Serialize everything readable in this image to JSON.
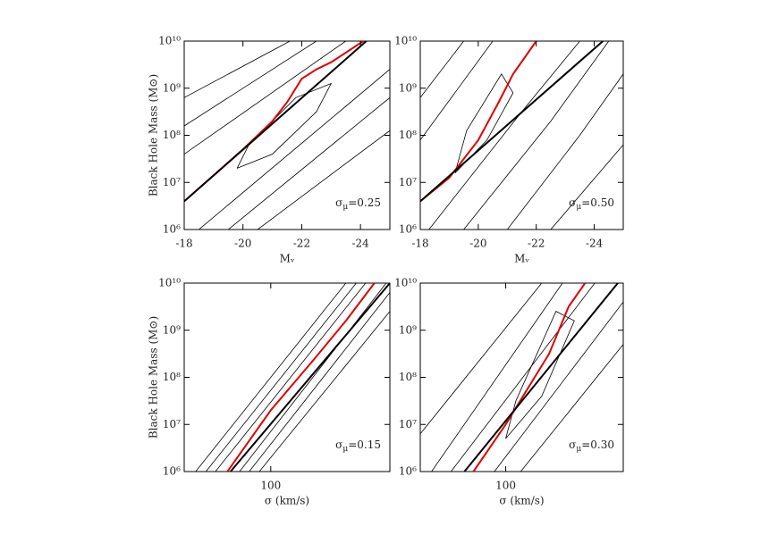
{
  "chart_data": [
    {
      "type": "line",
      "ylabel": "Black Hole Mass (M⊙)",
      "xlabel": "Mᵥ",
      "annotation": [
        "σ",
        "μ",
        "=0.25"
      ],
      "xlim": [
        -18,
        -25
      ],
      "xticks": [
        -18,
        -20,
        -22,
        -24
      ],
      "ylim": [
        6,
        10
      ],
      "yticks": [
        {
          "value": 6,
          "label": "10⁶"
        },
        {
          "value": 7,
          "label": "10⁷"
        },
        {
          "value": 8,
          "label": "10⁸"
        },
        {
          "value": 9,
          "label": "10⁹"
        },
        {
          "value": 10,
          "label": "10¹⁰"
        }
      ],
      "series": [
        {
          "color": "#000000",
          "x": [
            -18,
            -23.5
          ],
          "values": [
            7.6,
            10
          ]
        },
        {
          "color": "#000000",
          "x": [
            -18,
            -22.5
          ],
          "values": [
            8.2,
            10
          ]
        },
        {
          "color": "#000000",
          "x": [
            -18,
            -21.6
          ],
          "values": [
            8.8,
            10
          ]
        },
        {
          "color": "#000000",
          "x": [
            -18.5,
            -25
          ],
          "values": [
            6,
            9.4
          ]
        },
        {
          "color": "#000000",
          "x": [
            -19.5,
            -25
          ],
          "values": [
            6,
            8.8
          ]
        },
        {
          "color": "#000000",
          "x": [
            -20.5,
            -25
          ],
          "values": [
            6,
            8.1
          ]
        },
        {
          "color": "#000000",
          "x": [
            -19.8,
            -21,
            -22.5,
            -23,
            -21.8,
            -20.2,
            -19.8
          ],
          "values": [
            7.3,
            7.6,
            8.5,
            9.1,
            8.8,
            7.8,
            7.3
          ]
        },
        {
          "color": "#e00000",
          "x": [
            -18,
            -20,
            -21,
            -21.5,
            -22,
            -22.5,
            -23,
            -24.1
          ],
          "values": [
            6.6,
            7.7,
            8.3,
            8.7,
            9.2,
            9.4,
            9.55,
            10
          ]
        },
        {
          "color": "#000000",
          "x": [
            -18,
            -24.2
          ],
          "values": [
            6.6,
            10
          ]
        }
      ]
    },
    {
      "type": "line",
      "xlabel": "Mᵥ",
      "annotation": [
        "σ",
        "μ",
        "=0.50"
      ],
      "xlim": [
        -18,
        -25
      ],
      "xticks": [
        -18,
        -20,
        -22,
        -24
      ],
      "ylim": [
        6,
        10
      ],
      "yticks": [
        {
          "value": 6,
          "label": "10⁶"
        },
        {
          "value": 7,
          "label": "10⁷"
        },
        {
          "value": 8,
          "label": "10⁸"
        },
        {
          "value": 9,
          "label": "10⁹"
        },
        {
          "value": 10,
          "label": "10¹⁰"
        }
      ],
      "series": [
        {
          "color": "#000000",
          "x": [
            -18,
            -20.5
          ],
          "values": [
            7.9,
            10
          ]
        },
        {
          "color": "#000000",
          "x": [
            -18,
            -19.5
          ],
          "values": [
            8.8,
            10
          ]
        },
        {
          "color": "#000000",
          "x": [
            -18.3,
            -21.5,
            -23.5
          ],
          "values": [
            6,
            8.5,
            10
          ]
        },
        {
          "color": "#000000",
          "x": [
            -19.5,
            -22.5,
            -24.5
          ],
          "values": [
            6,
            8.3,
            10
          ]
        },
        {
          "color": "#000000",
          "x": [
            -21,
            -23.5,
            -25
          ],
          "values": [
            6,
            8,
            9.3
          ]
        },
        {
          "color": "#000000",
          "x": [
            -22.5,
            -25
          ],
          "values": [
            6,
            7.8
          ]
        },
        {
          "color": "#000000",
          "x": [
            -19.2,
            -20.3,
            -21.2,
            -20.8,
            -19.6,
            -19.2
          ],
          "values": [
            7.2,
            7.9,
            8.9,
            9.3,
            8.1,
            7.2
          ]
        },
        {
          "color": "#e00000",
          "x": [
            -18,
            -19,
            -20,
            -20.7,
            -21.2,
            -22
          ],
          "values": [
            6.6,
            7.1,
            7.9,
            8.7,
            9.3,
            10
          ]
        },
        {
          "color": "#000000",
          "x": [
            -18,
            -24.3
          ],
          "values": [
            6.6,
            10
          ]
        }
      ]
    },
    {
      "type": "line",
      "xlog": true,
      "ylabel": "Black Hole Mass (M⊙)",
      "xlabel": "σ (km/s)",
      "annotation": [
        "σ",
        "μ",
        "=0.15"
      ],
      "xlim": [
        45,
        300
      ],
      "xticks": [
        100
      ],
      "ylim": [
        6,
        10
      ],
      "yticks": [
        {
          "value": 6,
          "label": "10⁶"
        },
        {
          "value": 7,
          "label": "10⁷"
        },
        {
          "value": 8,
          "label": "10⁸"
        },
        {
          "value": 9,
          "label": "10⁹"
        },
        {
          "value": 10,
          "label": "10¹⁰"
        }
      ],
      "series": [
        {
          "color": "#000000",
          "x": [
            50,
            200
          ],
          "values": [
            6,
            10
          ]
        },
        {
          "color": "#000000",
          "x": [
            55,
            220
          ],
          "values": [
            6,
            10
          ]
        },
        {
          "color": "#000000",
          "x": [
            60,
            240
          ],
          "values": [
            6,
            10
          ]
        },
        {
          "color": "#000000",
          "x": [
            75,
            290
          ],
          "values": [
            6,
            10
          ]
        },
        {
          "color": "#000000",
          "x": [
            82,
            300
          ],
          "values": [
            6,
            9.8
          ]
        },
        {
          "color": "#000000",
          "x": [
            90,
            300
          ],
          "values": [
            6,
            9.4
          ]
        },
        {
          "color": "#e00000",
          "x": [
            67,
            100,
            150,
            200,
            260
          ],
          "values": [
            6,
            7.3,
            8.4,
            9.2,
            10
          ]
        },
        {
          "color": "#000000",
          "x": [
            69,
            300
          ],
          "values": [
            6,
            10
          ]
        }
      ]
    },
    {
      "type": "line",
      "xlog": true,
      "xlabel": "σ (km/s)",
      "annotation": [
        "σ",
        "μ",
        "=0.30"
      ],
      "xlim": [
        45,
        300
      ],
      "xticks": [
        100
      ],
      "ylim": [
        6,
        10
      ],
      "yticks": [
        {
          "value": 6,
          "label": "10⁶"
        },
        {
          "value": 7,
          "label": "10⁷"
        },
        {
          "value": 8,
          "label": "10⁸"
        },
        {
          "value": 9,
          "label": "10⁹"
        },
        {
          "value": 10,
          "label": "10¹⁰"
        }
      ],
      "series": [
        {
          "color": "#000000",
          "x": [
            45,
            140
          ],
          "values": [
            6.8,
            10
          ]
        },
        {
          "color": "#000000",
          "x": [
            50,
            170
          ],
          "values": [
            6,
            10
          ]
        },
        {
          "color": "#000000",
          "x": [
            60,
            230
          ],
          "values": [
            6,
            10
          ]
        },
        {
          "color": "#000000",
          "x": [
            90,
            300
          ],
          "values": [
            6,
            9.6
          ]
        },
        {
          "color": "#000000",
          "x": [
            115,
            300
          ],
          "values": [
            6,
            8.7
          ]
        },
        {
          "color": "#000000",
          "x": [
            100,
            140,
            190,
            160,
            110,
            100
          ],
          "values": [
            6.7,
            7.6,
            9.2,
            9.4,
            7.5,
            6.7
          ]
        },
        {
          "color": "#e00000",
          "x": [
            74,
            100,
            150,
            180,
            210
          ],
          "values": [
            6,
            7,
            8.5,
            9.5,
            10
          ]
        },
        {
          "color": "#000000",
          "x": [
            68,
            285
          ],
          "values": [
            6,
            10
          ]
        }
      ]
    }
  ]
}
